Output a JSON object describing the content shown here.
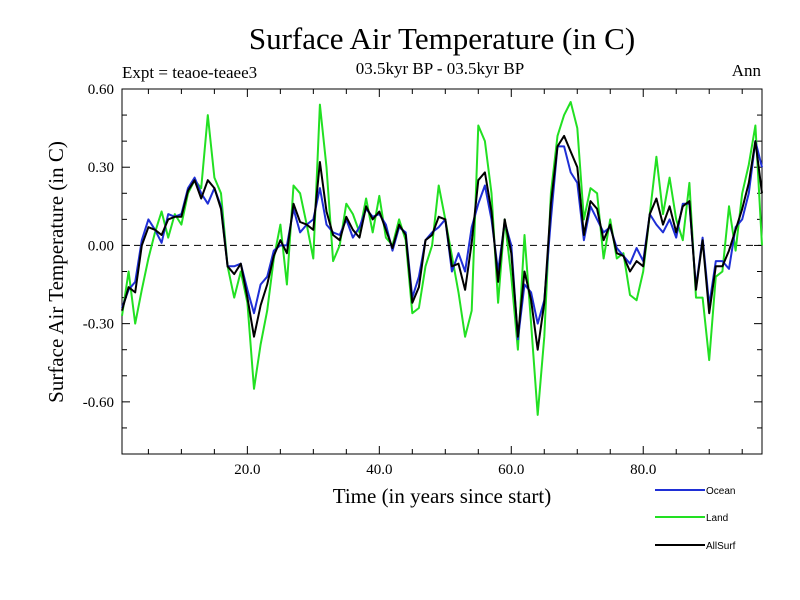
{
  "chart_data": {
    "type": "line",
    "title": "Surface Air Temperature (in C)",
    "subtitle": "03.5kyr BP - 03.5kyr BP",
    "left_label": "Expt = teaoe-teaee3",
    "right_label": "Ann",
    "xlabel": "Time (in years since start)",
    "ylabel": "Surface Air Temperature (in C)",
    "xlim": [
      1,
      98
    ],
    "ylim": [
      -0.8,
      0.6
    ],
    "xticks": [
      20,
      40,
      60,
      80
    ],
    "xtick_labels": [
      "20.0",
      "40.0",
      "60.0",
      "80.0"
    ],
    "yticks": [
      -0.6,
      -0.3,
      0.0,
      0.3,
      0.6
    ],
    "ytick_labels": [
      "-0.60",
      "-0.30",
      "0.00",
      "0.30",
      "0.60"
    ],
    "zero_line": "dashed",
    "x": [
      1,
      2,
      3,
      4,
      5,
      6,
      7,
      8,
      9,
      10,
      11,
      12,
      13,
      14,
      15,
      16,
      17,
      18,
      19,
      20,
      21,
      22,
      23,
      24,
      25,
      26,
      27,
      28,
      29,
      30,
      31,
      32,
      33,
      34,
      35,
      36,
      37,
      38,
      39,
      40,
      41,
      42,
      43,
      44,
      45,
      46,
      47,
      48,
      49,
      50,
      51,
      52,
      53,
      54,
      55,
      56,
      57,
      58,
      59,
      60,
      61,
      62,
      63,
      64,
      65,
      66,
      67,
      68,
      69,
      70,
      71,
      72,
      73,
      74,
      75,
      76,
      77,
      78,
      79,
      80,
      81,
      82,
      83,
      84,
      85,
      86,
      87,
      88,
      89,
      90,
      91,
      92,
      93,
      94,
      95,
      96,
      97,
      98
    ],
    "series": [
      {
        "name": "Ocean",
        "color": "#1f2fd6",
        "values": [
          -0.24,
          -0.17,
          -0.14,
          0.02,
          0.1,
          0.06,
          0.01,
          0.12,
          0.11,
          0.12,
          0.22,
          0.26,
          0.2,
          0.16,
          0.22,
          0.15,
          -0.08,
          -0.08,
          -0.07,
          -0.17,
          -0.26,
          -0.15,
          -0.12,
          -0.02,
          0.0,
          0.0,
          0.14,
          0.05,
          0.08,
          0.1,
          0.22,
          0.08,
          0.05,
          0.04,
          0.1,
          0.03,
          0.07,
          0.14,
          0.11,
          0.12,
          0.08,
          -0.02,
          0.07,
          0.05,
          -0.2,
          -0.12,
          0.02,
          0.05,
          0.07,
          0.1,
          -0.1,
          -0.03,
          -0.1,
          0.07,
          0.16,
          0.23,
          0.1,
          -0.1,
          0.09,
          0.0,
          -0.36,
          -0.15,
          -0.18,
          -0.3,
          -0.21,
          0.1,
          0.38,
          0.38,
          0.28,
          0.24,
          0.02,
          0.15,
          0.1,
          0.05,
          0.07,
          -0.01,
          -0.04,
          -0.07,
          -0.01,
          -0.06,
          0.12,
          0.08,
          0.05,
          0.1,
          0.03,
          0.16,
          0.16,
          -0.16,
          0.03,
          -0.23,
          -0.06,
          -0.06,
          -0.09,
          0.07,
          0.1,
          0.2,
          0.4,
          0.3
        ]
      },
      {
        "name": "Land",
        "color": "#22e022",
        "values": [
          -0.27,
          -0.1,
          -0.3,
          -0.17,
          -0.05,
          0.05,
          0.13,
          0.03,
          0.12,
          0.08,
          0.2,
          0.25,
          0.22,
          0.5,
          0.26,
          0.2,
          -0.08,
          -0.2,
          -0.1,
          -0.22,
          -0.55,
          -0.38,
          -0.25,
          -0.05,
          0.08,
          -0.15,
          0.23,
          0.2,
          0.08,
          -0.05,
          0.54,
          0.3,
          -0.06,
          0.0,
          0.16,
          0.12,
          0.05,
          0.18,
          0.05,
          0.19,
          0.03,
          0.0,
          0.1,
          0.02,
          -0.26,
          -0.24,
          -0.08,
          0.0,
          0.23,
          0.1,
          -0.04,
          -0.18,
          -0.35,
          -0.25,
          0.46,
          0.4,
          0.2,
          -0.22,
          0.1,
          -0.12,
          -0.4,
          0.04,
          -0.3,
          -0.65,
          -0.35,
          0.2,
          0.42,
          0.5,
          0.55,
          0.45,
          0.1,
          0.22,
          0.2,
          -0.05,
          0.1,
          -0.05,
          -0.03,
          -0.19,
          -0.21,
          -0.1,
          0.12,
          0.34,
          0.12,
          0.26,
          0.1,
          0.02,
          0.24,
          -0.2,
          -0.2,
          -0.44,
          -0.12,
          -0.1,
          0.15,
          -0.02,
          0.2,
          0.31,
          0.46,
          0.0
        ]
      },
      {
        "name": "AllSurf",
        "color": "#000000",
        "values": [
          -0.25,
          -0.16,
          -0.18,
          0.0,
          0.07,
          0.06,
          0.04,
          0.1,
          0.11,
          0.11,
          0.21,
          0.25,
          0.18,
          0.25,
          0.22,
          0.14,
          -0.08,
          -0.11,
          -0.07,
          -0.2,
          -0.35,
          -0.23,
          -0.15,
          -0.04,
          0.02,
          -0.03,
          0.16,
          0.09,
          0.08,
          0.06,
          0.32,
          0.13,
          0.04,
          0.02,
          0.11,
          0.06,
          0.03,
          0.15,
          0.1,
          0.13,
          0.06,
          -0.01,
          0.08,
          0.04,
          -0.22,
          -0.16,
          0.02,
          0.04,
          0.11,
          0.1,
          -0.08,
          -0.07,
          -0.17,
          0.01,
          0.25,
          0.28,
          0.13,
          -0.14,
          0.1,
          -0.03,
          -0.35,
          -0.1,
          -0.21,
          -0.4,
          -0.22,
          0.16,
          0.38,
          0.42,
          0.36,
          0.3,
          0.04,
          0.17,
          0.14,
          0.02,
          0.08,
          -0.03,
          -0.04,
          -0.1,
          -0.06,
          -0.08,
          0.12,
          0.18,
          0.08,
          0.15,
          0.05,
          0.15,
          0.17,
          -0.17,
          0.02,
          -0.26,
          -0.08,
          -0.08,
          -0.02,
          0.06,
          0.14,
          0.24,
          0.4,
          0.2
        ]
      }
    ],
    "legend": {
      "position": "bottom-right",
      "order": [
        "Ocean",
        "Land",
        "AllSurf"
      ]
    }
  }
}
